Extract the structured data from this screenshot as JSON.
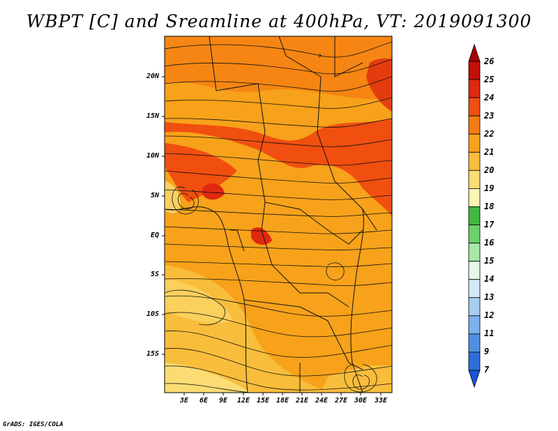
{
  "title": "WBPT [C] and Sreamline at 400hPa, VT: 2019091300",
  "credit": "GrADS: IGES/COLA",
  "map": {
    "lat_labels": [
      "20N",
      "15N",
      "10N",
      "5N",
      "EQ",
      "5S",
      "10S",
      "15S"
    ],
    "lon_labels": [
      "3E",
      "6E",
      "9E",
      "12E",
      "15E",
      "18E",
      "21E",
      "24E",
      "27E",
      "30E",
      "33E"
    ]
  },
  "colorbar": {
    "labels": [
      "26",
      "25",
      "24",
      "23",
      "22",
      "21",
      "20",
      "19",
      "18",
      "17",
      "16",
      "15",
      "14",
      "13",
      "12",
      "11",
      "9",
      "7"
    ],
    "colors": [
      "#a50000",
      "#c40f08",
      "#e0280f",
      "#f04f10",
      "#f57b12",
      "#f7a21a",
      "#f9bd3c",
      "#fbdc73",
      "#fcf4b2",
      "#3fb93f",
      "#6bd26b",
      "#a6e7a6",
      "#e6f8e8",
      "#d4e9f8",
      "#a7cdf1",
      "#7bb1ec",
      "#4e8fe3",
      "#2f6fdc",
      "#1a55d4"
    ]
  }
}
